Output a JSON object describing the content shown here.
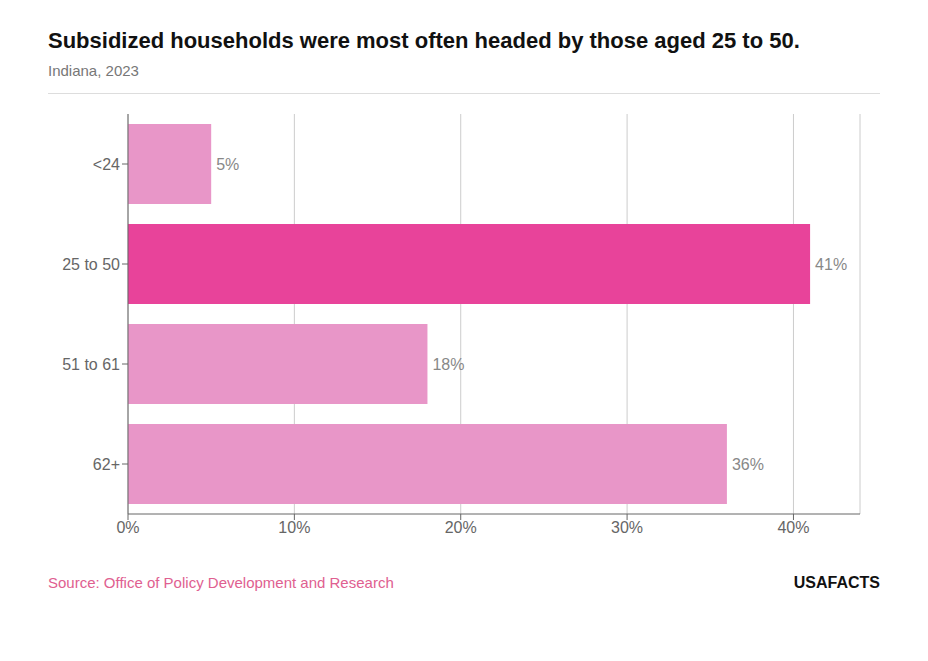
{
  "chart_data": {
    "type": "bar",
    "orientation": "horizontal",
    "title": "Subsidized households were most often headed by those aged 25 to 50.",
    "subtitle": "Indiana, 2023",
    "categories": [
      "<24",
      "25 to 50",
      "51 to 61",
      "62+"
    ],
    "values": [
      5,
      41,
      18,
      36
    ],
    "value_labels": [
      "5%",
      "41%",
      "18%",
      "36%"
    ],
    "data_labels": true,
    "colors": [
      "#e896c8",
      "#e8439a",
      "#e896c8",
      "#e896c8"
    ],
    "xlim": [
      0,
      44
    ],
    "xticks": [
      {
        "value": 0,
        "label": "0%"
      },
      {
        "value": 10,
        "label": "10%"
      },
      {
        "value": 20,
        "label": "20%"
      },
      {
        "value": 30,
        "label": "30%"
      },
      {
        "value": 40,
        "label": "40%"
      }
    ],
    "grid": true,
    "annotations": [
      "Source: Office of Policy Development and Research",
      "USAFACTS"
    ]
  }
}
